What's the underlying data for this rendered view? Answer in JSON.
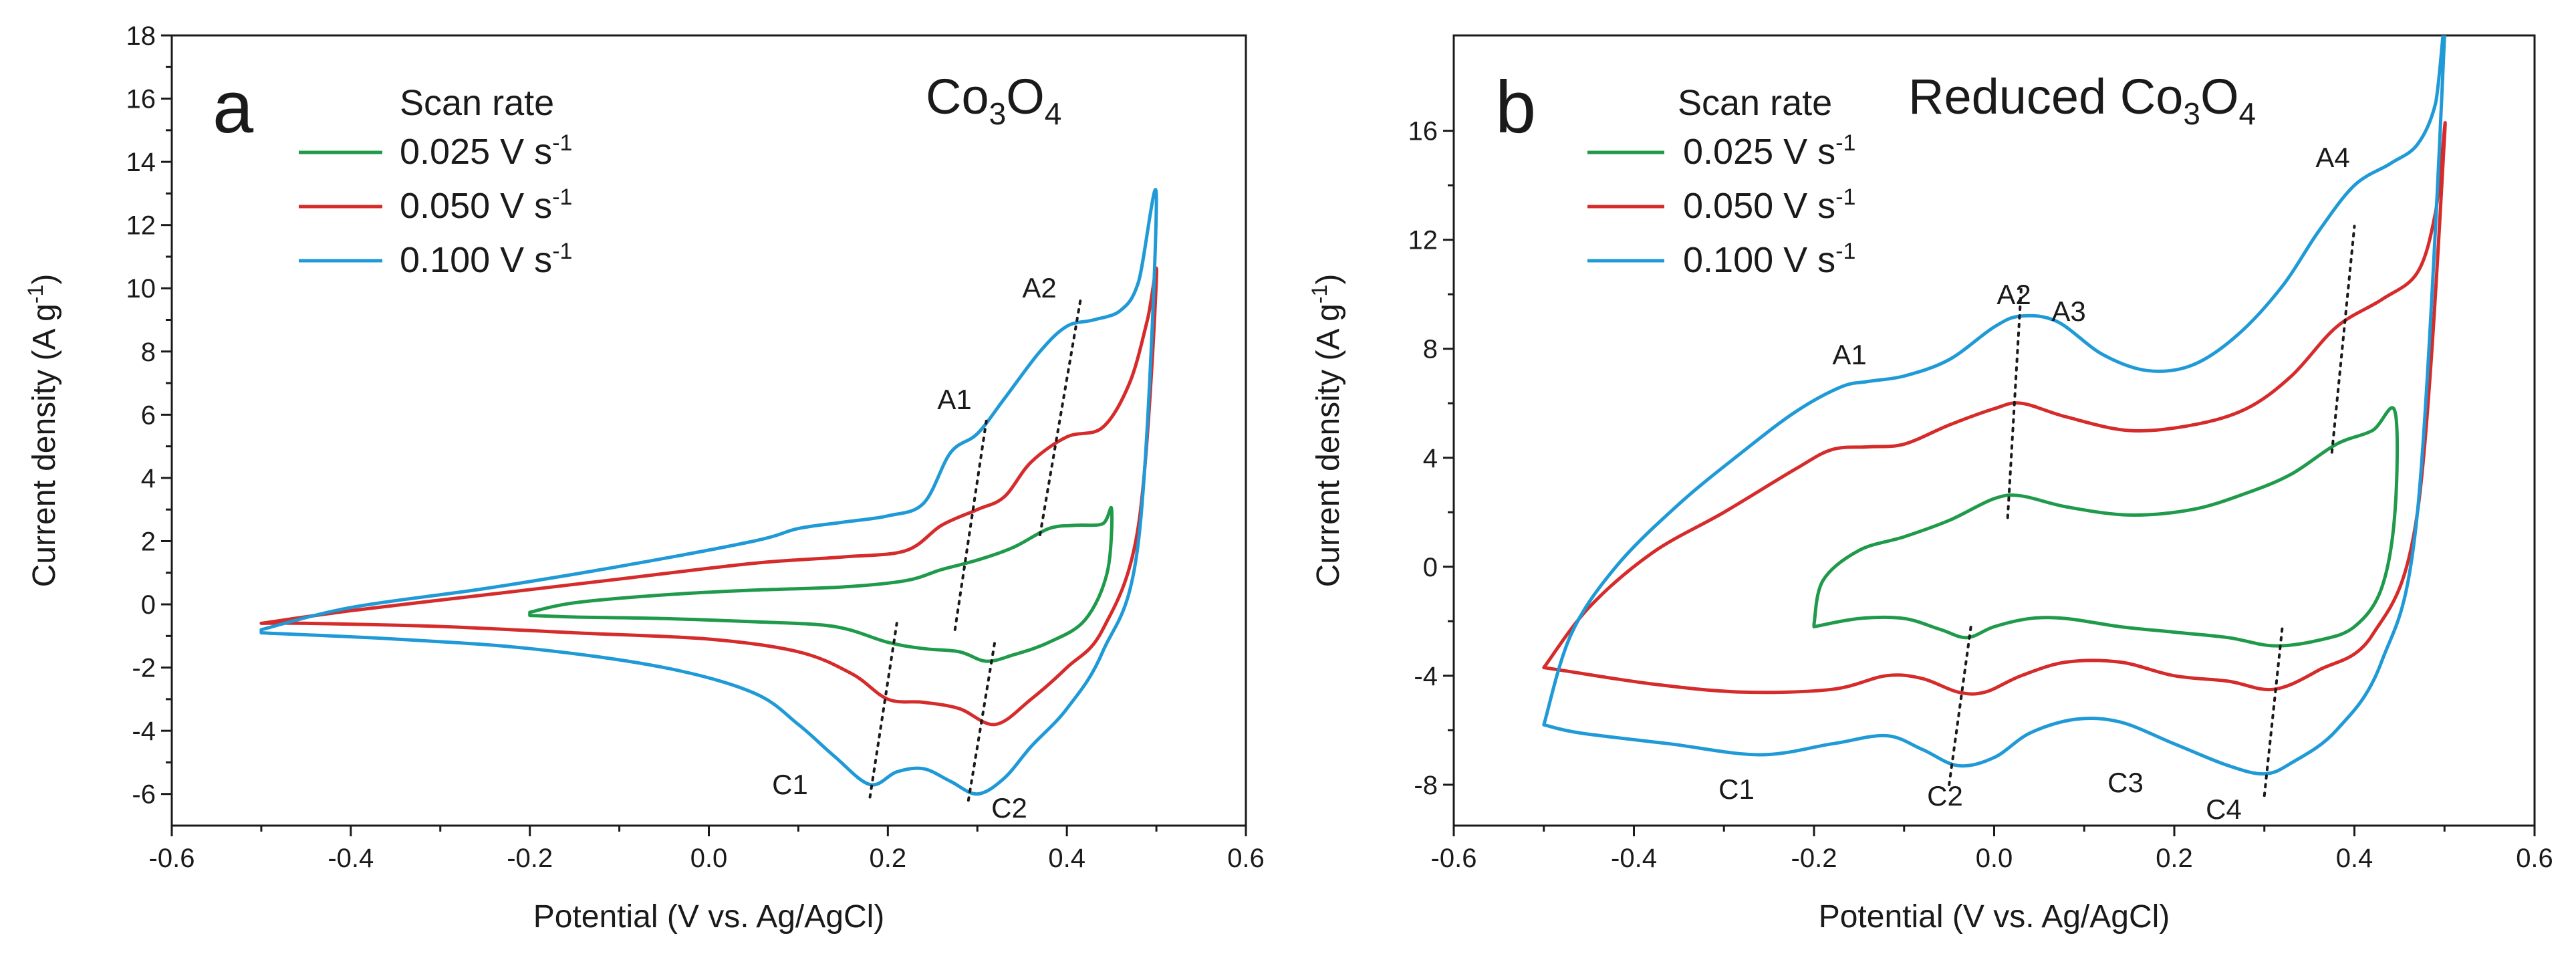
{
  "chart_data": [
    {
      "type": "line",
      "panel": "a",
      "title": "Co3O4",
      "title_parts": {
        "base": "Co",
        "sub1": "3",
        "mid": "O",
        "sub2": "4"
      },
      "xlabel": "Potential (V vs. Ag/AgCl)",
      "ylabel": "Current density (A g",
      "ylabel_sup": "-1",
      "ylabel_end": ")",
      "xlim": [
        -0.6,
        0.6
      ],
      "ylim": [
        -7,
        18
      ],
      "x_ticks": [
        -0.6,
        -0.4,
        -0.2,
        0.0,
        0.2,
        0.4,
        0.6
      ],
      "x_tick_labels": [
        "-0.6",
        "-0.4",
        "-0.2",
        "0.0",
        "0.2",
        "0.4",
        "0.6"
      ],
      "y_ticks": [
        -6,
        -4,
        -2,
        0,
        2,
        4,
        6,
        8,
        10,
        12,
        14,
        16,
        18
      ],
      "y_tick_labels": [
        "-6",
        "-4",
        "-2",
        "0",
        "2",
        "4",
        "6",
        "8",
        "10",
        "12",
        "14",
        "16",
        "18"
      ],
      "legend_title": "Scan rate",
      "legend_unit": "V s",
      "legend_unit_sup": "-1",
      "series": [
        {
          "name": "0.025",
          "color": "#1f9a4a",
          "x": [
            -0.2,
            -0.15,
            -0.05,
            0.05,
            0.15,
            0.22,
            0.26,
            0.3,
            0.34,
            0.38,
            0.41,
            0.44,
            0.45,
            0.445,
            0.42,
            0.38,
            0.34,
            0.31,
            0.28,
            0.24,
            0.2,
            0.14,
            0.05,
            -0.05,
            -0.15,
            -0.2
          ],
          "y": [
            -0.25,
            0.05,
            0.3,
            0.45,
            0.55,
            0.75,
            1.1,
            1.4,
            1.8,
            2.4,
            2.5,
            2.55,
            3.0,
            1.0,
            -0.5,
            -1.2,
            -1.6,
            -1.8,
            -1.5,
            -1.4,
            -1.2,
            -0.7,
            -0.55,
            -0.45,
            -0.4,
            -0.35
          ]
        },
        {
          "name": "0.050",
          "color": "#d62b2b",
          "x": [
            -0.5,
            -0.4,
            -0.25,
            -0.1,
            0.05,
            0.15,
            0.22,
            0.26,
            0.3,
            0.33,
            0.36,
            0.4,
            0.44,
            0.47,
            0.49,
            0.5,
            0.48,
            0.44,
            0.4,
            0.36,
            0.32,
            0.28,
            0.24,
            0.2,
            0.16,
            0.1,
            0.0,
            -0.15,
            -0.3,
            -0.45,
            -0.5
          ],
          "y": [
            -0.6,
            -0.2,
            0.3,
            0.8,
            1.3,
            1.5,
            1.7,
            2.5,
            3.0,
            3.4,
            4.5,
            5.3,
            5.6,
            7.0,
            9.0,
            10.3,
            2.5,
            -0.8,
            -2.0,
            -3.0,
            -3.8,
            -3.3,
            -3.1,
            -3.0,
            -2.2,
            -1.5,
            -1.1,
            -0.9,
            -0.7,
            -0.6,
            -0.6
          ]
        },
        {
          "name": "0.100",
          "color": "#1f9ad6",
          "x": [
            -0.5,
            -0.4,
            -0.25,
            -0.1,
            0.05,
            0.1,
            0.15,
            0.2,
            0.24,
            0.27,
            0.3,
            0.33,
            0.37,
            0.4,
            0.43,
            0.46,
            0.48,
            0.5,
            0.48,
            0.44,
            0.4,
            0.36,
            0.33,
            0.3,
            0.27,
            0.24,
            0.21,
            0.18,
            0.14,
            0.1,
            0.05,
            -0.05,
            -0.2,
            -0.35,
            -0.5
          ],
          "y": [
            -0.8,
            -0.1,
            0.5,
            1.2,
            2.0,
            2.4,
            2.6,
            2.8,
            3.2,
            4.8,
            5.4,
            6.5,
            8.0,
            8.8,
            9.0,
            9.3,
            10.2,
            12.8,
            2.0,
            -1.5,
            -3.3,
            -4.5,
            -5.5,
            -6.0,
            -5.6,
            -5.2,
            -5.3,
            -5.7,
            -4.8,
            -3.8,
            -2.8,
            -2.0,
            -1.4,
            -1.1,
            -0.9
          ]
        }
      ],
      "peak_labels": [
        "A1",
        "A2",
        "C1",
        "C2"
      ],
      "guides": [
        {
          "from": [
            0.275,
            -0.8
          ],
          "to": [
            0.31,
            5.8
          ]
        },
        {
          "from": [
            0.37,
            2.2
          ],
          "to": [
            0.415,
            9.6
          ]
        },
        {
          "from": [
            0.18,
            -6.1
          ],
          "to": [
            0.21,
            -0.6
          ]
        },
        {
          "from": [
            0.29,
            -6.2
          ],
          "to": [
            0.32,
            -1.1
          ]
        }
      ]
    },
    {
      "type": "line",
      "panel": "b",
      "title": "Reduced Co3O4",
      "title_parts": {
        "base": "Reduced Co",
        "sub1": "3",
        "mid": "O",
        "sub2": "4"
      },
      "xlabel": "Potential (V vs. Ag/AgCl)",
      "ylabel": "Current density (A g",
      "ylabel_sup": "-1",
      "ylabel_end": ")",
      "xlim": [
        -0.6,
        0.6
      ],
      "ylim": [
        -9.5,
        19.5
      ],
      "x_ticks": [
        -0.6,
        -0.4,
        -0.2,
        0.0,
        0.2,
        0.4,
        0.6
      ],
      "x_tick_labels": [
        "-0.6",
        "-0.4",
        "-0.2",
        "0.0",
        "0.2",
        "0.4",
        "0.6"
      ],
      "y_ticks": [
        -8,
        -4,
        0,
        4,
        8,
        12,
        16
      ],
      "y_tick_labels": [
        "-8",
        "-4",
        "0",
        "4",
        "8",
        "12",
        "16"
      ],
      "legend_title": "Scan rate",
      "legend_unit": "V s",
      "legend_unit_sup": "-1",
      "series": [
        {
          "name": "0.025",
          "color": "#1f9a4a",
          "x": [
            -0.2,
            -0.19,
            -0.15,
            -0.1,
            -0.05,
            0.0,
            0.03,
            0.08,
            0.15,
            0.22,
            0.28,
            0.33,
            0.38,
            0.42,
            0.445,
            0.445,
            0.43,
            0.4,
            0.36,
            0.31,
            0.26,
            0.2,
            0.14,
            0.08,
            0.04,
            0.0,
            -0.03,
            -0.06,
            -0.1,
            -0.15,
            -0.2
          ],
          "y": [
            -2.1,
            -0.5,
            0.6,
            1.1,
            1.7,
            2.5,
            2.6,
            2.2,
            1.9,
            2.1,
            2.7,
            3.4,
            4.5,
            5.0,
            5.7,
            2.0,
            -0.8,
            -2.2,
            -2.7,
            -2.9,
            -2.6,
            -2.4,
            -2.2,
            -1.9,
            -1.9,
            -2.2,
            -2.6,
            -2.3,
            -1.9,
            -1.9,
            -2.2
          ]
        },
        {
          "name": "0.050",
          "color": "#d62b2b",
          "x": [
            -0.5,
            -0.45,
            -0.38,
            -0.3,
            -0.22,
            -0.18,
            -0.14,
            -0.1,
            -0.05,
            0.0,
            0.03,
            0.08,
            0.15,
            0.22,
            0.28,
            0.33,
            0.38,
            0.43,
            0.47,
            0.49,
            0.5,
            0.47,
            0.42,
            0.36,
            0.31,
            0.26,
            0.2,
            0.14,
            0.08,
            0.03,
            -0.01,
            -0.04,
            -0.08,
            -0.12,
            -0.18,
            -0.28,
            -0.38,
            -0.48,
            -0.5
          ],
          "y": [
            -3.7,
            -1.5,
            0.5,
            2.0,
            3.6,
            4.3,
            4.4,
            4.5,
            5.2,
            5.8,
            6.0,
            5.5,
            5.0,
            5.2,
            5.8,
            7.0,
            8.8,
            9.8,
            10.8,
            13.0,
            15.8,
            2.0,
            -2.5,
            -3.8,
            -4.5,
            -4.2,
            -4.0,
            -3.5,
            -3.5,
            -4.0,
            -4.6,
            -4.6,
            -4.1,
            -4.0,
            -4.5,
            -4.6,
            -4.3,
            -3.8,
            -3.7
          ]
        },
        {
          "name": "0.100",
          "color": "#1f9ad6",
          "x": [
            -0.5,
            -0.47,
            -0.42,
            -0.35,
            -0.28,
            -0.22,
            -0.17,
            -0.14,
            -0.1,
            -0.05,
            0.0,
            0.03,
            0.07,
            0.12,
            0.17,
            0.22,
            0.27,
            0.32,
            0.36,
            0.4,
            0.44,
            0.47,
            0.49,
            0.5,
            0.47,
            0.43,
            0.38,
            0.33,
            0.3,
            0.26,
            0.2,
            0.14,
            0.09,
            0.04,
            0.0,
            -0.04,
            -0.08,
            -0.12,
            -0.18,
            -0.26,
            -0.36,
            -0.46,
            -0.5
          ],
          "y": [
            -5.8,
            -2.5,
            0.0,
            2.3,
            4.2,
            5.7,
            6.6,
            6.8,
            7.0,
            7.6,
            8.8,
            9.2,
            9.0,
            7.8,
            7.2,
            7.4,
            8.5,
            10.3,
            12.3,
            14.0,
            14.8,
            15.5,
            17.0,
            19.5,
            2.0,
            -3.5,
            -6.0,
            -7.2,
            -7.6,
            -7.3,
            -6.5,
            -5.7,
            -5.6,
            -6.1,
            -7.0,
            -7.3,
            -6.7,
            -6.2,
            -6.5,
            -6.9,
            -6.5,
            -6.1,
            -5.8
          ]
        }
      ],
      "peak_labels": [
        "A1",
        "A2",
        "A3",
        "A4",
        "C1",
        "C2",
        "C3",
        "C4"
      ],
      "guides": [
        {
          "from": [
            0.015,
            1.8
          ],
          "to": [
            0.03,
            10.2
          ]
        },
        {
          "from": [
            0.375,
            4.2
          ],
          "to": [
            0.4,
            12.5
          ]
        },
        {
          "from": [
            -0.05,
            -8.0
          ],
          "to": [
            -0.025,
            -2.0
          ]
        },
        {
          "from": [
            0.3,
            -8.4
          ],
          "to": [
            0.32,
            -2.2
          ]
        }
      ]
    }
  ]
}
